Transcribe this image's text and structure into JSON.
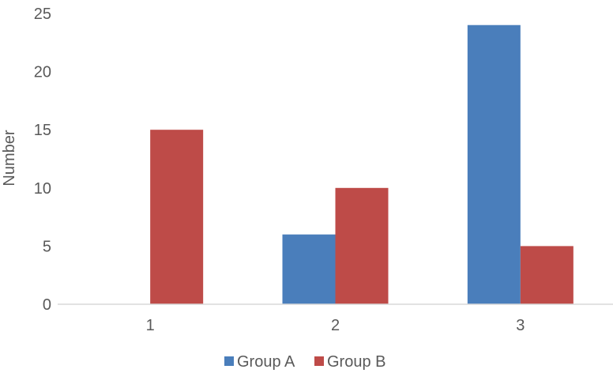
{
  "chart_data": {
    "type": "bar",
    "categories": [
      "1",
      "2",
      "3"
    ],
    "series": [
      {
        "name": "Group A",
        "values": [
          0,
          6,
          24
        ],
        "color": "#4a7ebb"
      },
      {
        "name": "Group B",
        "values": [
          15,
          10,
          5
        ],
        "color": "#be4b48"
      }
    ],
    "xlabel": "",
    "ylabel": "Number",
    "ylim": [
      0,
      25
    ],
    "yticks": [
      "0",
      "5",
      "10",
      "15",
      "20",
      "25"
    ],
    "grid": false,
    "legend": "bottom"
  }
}
